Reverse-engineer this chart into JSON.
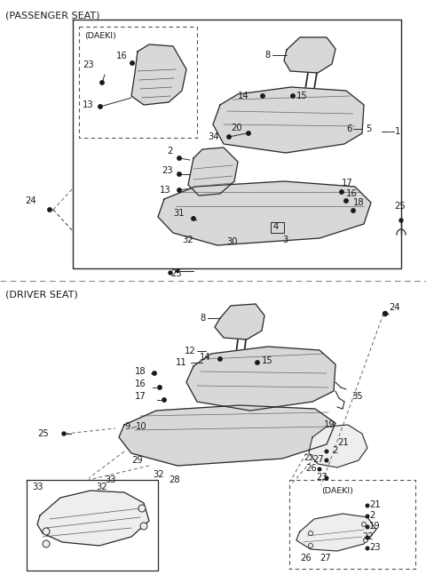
{
  "bg_color": "#ffffff",
  "line_color": "#2a2a2a",
  "gray_fill": "#d8d8d8",
  "light_fill": "#eeeeee",
  "dark_line": "#1a1a1a",
  "passenger_label": "(PASSENGER SEAT)",
  "driver_label": "(DRIVER SEAT)",
  "font_size_section": 8.0,
  "font_size_part": 7.2,
  "font_size_daeki": 6.8,
  "fig_width": 4.8,
  "fig_height": 6.56,
  "dpi": 100
}
